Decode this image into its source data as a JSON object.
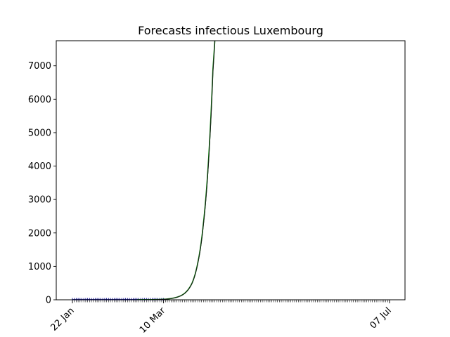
{
  "chart_data": {
    "type": "line",
    "title": "Forecasts infectious Luxembourg",
    "xlabel": "",
    "ylabel": "",
    "x_range": [
      "2020-01-22",
      "2020-07-07"
    ],
    "x_ticks": [
      {
        "date": "2020-01-22",
        "label": "22 Jan"
      },
      {
        "date": "2020-03-10",
        "label": "10 Mar"
      },
      {
        "date": "2020-07-07",
        "label": "07 Jul"
      }
    ],
    "ylim": [
      0,
      7750
    ],
    "y_ticks": [
      0,
      1000,
      2000,
      3000,
      4000,
      5000,
      6000,
      7000
    ],
    "grid": false,
    "series": [
      {
        "color": "#00008b",
        "style": "markers",
        "x": [
          "2020-01-22",
          "2020-03-10"
        ],
        "y": [
          0,
          0
        ]
      },
      {
        "color": "#008000",
        "style": "line",
        "x": [
          "2020-02-25",
          "2020-03-05",
          "2020-03-10",
          "2020-03-15",
          "2020-03-20",
          "2020-03-25",
          "2020-03-28",
          "2020-03-31",
          "2020-04-03",
          "2020-04-05",
          "2020-04-06"
        ],
        "y": [
          0,
          5,
          15,
          50,
          150,
          500,
          1100,
          2300,
          4500,
          6900,
          7750
        ]
      },
      {
        "color": "#1a1a1a",
        "style": "line",
        "x": [
          "2020-02-25",
          "2020-03-05",
          "2020-03-10",
          "2020-03-15",
          "2020-03-20",
          "2020-03-25",
          "2020-03-28",
          "2020-03-31",
          "2020-04-03",
          "2020-04-05",
          "2020-04-06"
        ],
        "y": [
          0,
          5,
          14,
          48,
          145,
          490,
          1080,
          2250,
          4400,
          6800,
          7750
        ]
      }
    ]
  }
}
